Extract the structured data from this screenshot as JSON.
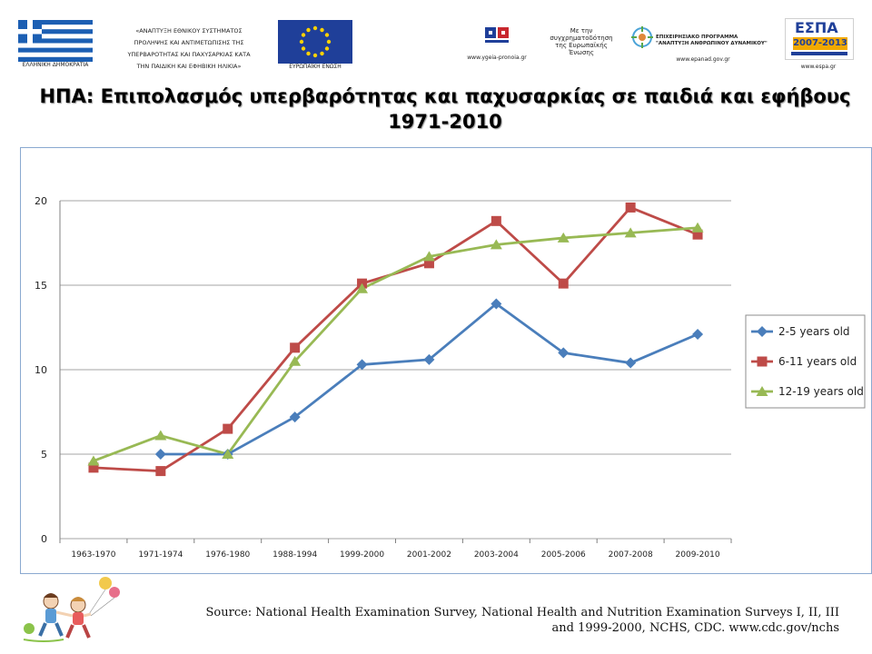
{
  "header": {
    "greek_flag_caption": "ΕΛΛΗΝΙΚΗ ΔΗΜΟΚΡΑΤΙΑ",
    "program_lines": [
      "«ΑΝΑΠΤΥΞΗ ΕΘΝΙΚΟΥ ΣΥΣΤΗΜΑΤΟΣ",
      "ΠΡΟΛΗΨΗΣ ΚΑΙ ΑΝΤΙΜΕΤΩΠΙΣΗΣ ΤΗΣ",
      "ΥΠΕΡΒΑΡΟΤΗΤΑΣ ΚΑΙ ΠΑΧΥΣΑΡΚΙΑΣ ΚΑΤΑ",
      "ΤΗΝ ΠΑΙΔΙΚΗ ΚΑΙ ΕΦΗΒΙΚΗ ΗΛΙΚΙΑ»"
    ],
    "eu_flag_caption": "ΕΥΡΩΠΑΪΚΗ ΕΝΩΣΗ",
    "ygeia_url": "www.ygeia-pronoia.gr",
    "cofunded_lines": [
      "Με την",
      "συγχρηματοδότηση",
      "της Ευρωπαϊκής",
      "Ένωσης"
    ],
    "epanad_lines": [
      "ΕΠΙΧΕΙΡΗΣΙΑΚΟ ΠΡΟΓΡΑΜΜΑ",
      "\"ΑΝΑΠΤΥΞΗ ΑΝΘΡΩΠΙΝΟΥ ΔΥΝΑΜΙΚΟΥ\""
    ],
    "epanad_url": "www.epanad.gov.gr",
    "espa_title": "ΕΣΠΑ",
    "espa_years": "2007-2013",
    "espa_url": "www.espa.gr"
  },
  "title": {
    "line1": "ΗΠΑ: Επιπολασμός υπερβαρότητας και παχυσαρκίας σε παιδιά και εφήβους",
    "line2": "1971-2010"
  },
  "colors": {
    "series_2_5": "#4a7ebb",
    "series_6_11": "#be4b48",
    "series_12_19": "#98b954",
    "gridline": "#a6a6a6",
    "frame": "#8aa9d0"
  },
  "chart_data": {
    "type": "line",
    "title": "",
    "xlabel": "",
    "ylabel": "",
    "categories": [
      "1963-1970",
      "1971-1974",
      "1976-1980",
      "1988-1994",
      "1999-2000",
      "2001-2002",
      "2003-2004",
      "2005-2006",
      "2007-2008",
      "2009-2010"
    ],
    "ylim": [
      0,
      20
    ],
    "yticks": [
      0,
      5,
      10,
      15,
      20
    ],
    "grid": true,
    "legend_position": "right",
    "series": [
      {
        "name": "2-5 years old",
        "marker": "diamond",
        "color": "#4a7ebb",
        "values": [
          null,
          5.0,
          5.0,
          7.2,
          10.3,
          10.6,
          13.9,
          11.0,
          10.4,
          12.1
        ]
      },
      {
        "name": "6-11 years old",
        "marker": "square",
        "color": "#be4b48",
        "values": [
          4.2,
          4.0,
          6.5,
          11.3,
          15.1,
          16.3,
          18.8,
          15.1,
          19.6,
          18.0
        ]
      },
      {
        "name": "12-19 years old",
        "marker": "triangle",
        "color": "#98b954",
        "values": [
          4.6,
          6.1,
          5.0,
          10.5,
          14.8,
          16.7,
          17.4,
          17.8,
          18.1,
          18.4
        ]
      }
    ]
  },
  "source": {
    "line1": "Source: National Health Examination Survey, National Health and Nutrition Examination Surveys I, II, III",
    "line2": "and 1999-2000, NCHS, CDC. www.cdc.gov/nchs"
  }
}
